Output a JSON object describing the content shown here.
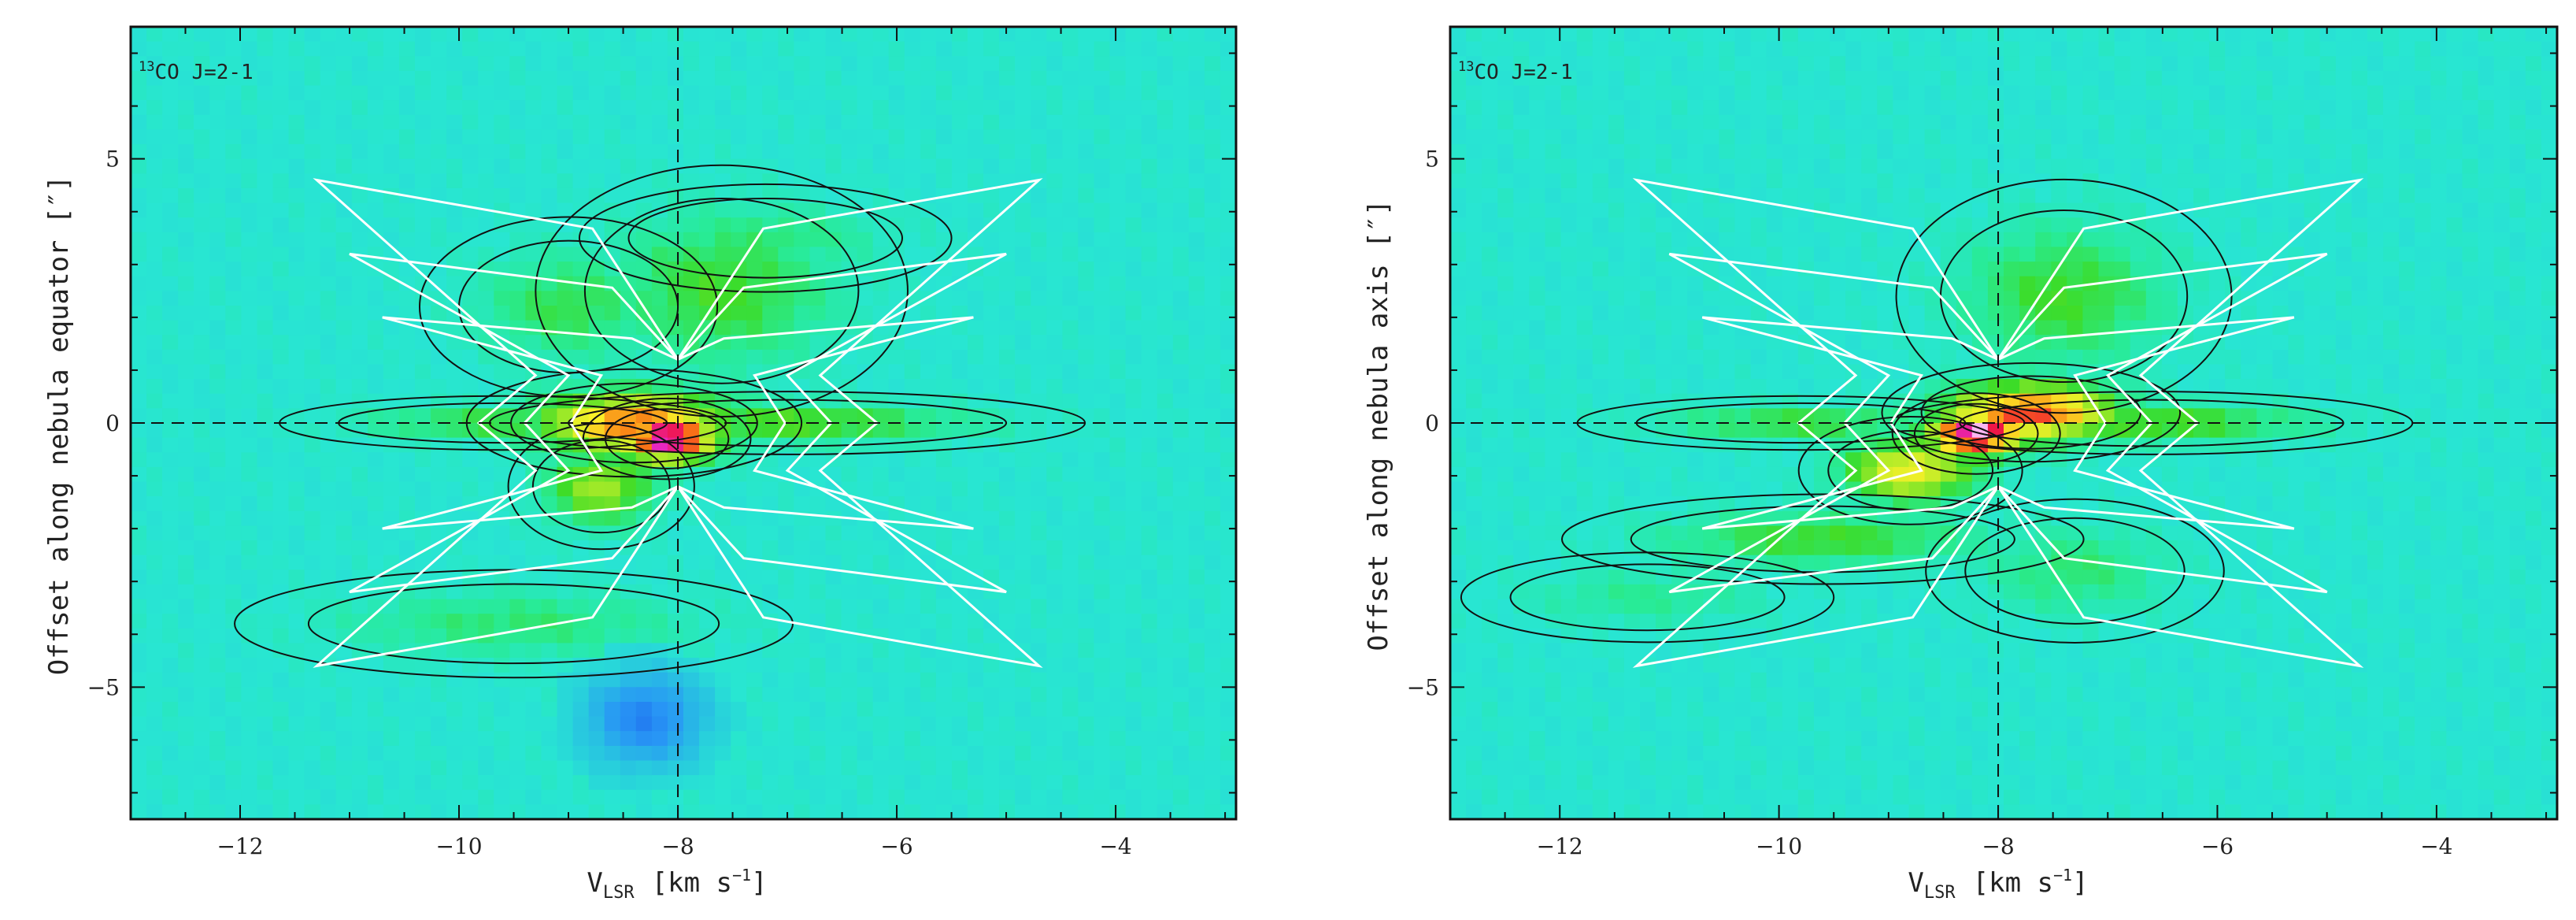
{
  "chart_data": [
    {
      "type": "heatmap",
      "panel_label": {
        "sup": "13",
        "text": "CO J=2-1"
      },
      "xlabel": {
        "main": "V",
        "sub": "LSR",
        "units": "[km s",
        "sup": "−1",
        "close": "]"
      },
      "ylabel": "Offset along nebula equator [″]",
      "xlim": [
        -13.0,
        -2.9
      ],
      "ylim": [
        -7.5,
        7.5
      ],
      "x_ticks": [
        -12,
        -10,
        -8,
        -6,
        -4
      ],
      "x_tick_labels": [
        "−12",
        "−10",
        "−8",
        "−6",
        "−4"
      ],
      "y_ticks": [
        5,
        0,
        -5
      ],
      "y_tick_labels": [
        "5",
        "0",
        "−5"
      ],
      "reference_lines": {
        "x": -8.0,
        "y": 0.0
      },
      "emission": {
        "peak": {
          "x": -8.1,
          "y": -0.3,
          "level": 1.0
        },
        "lobes": [
          {
            "x": -8.4,
            "y": 0.0,
            "wx": 0.9,
            "wy": 0.6,
            "level": 0.75
          },
          {
            "x": -8.7,
            "y": -1.2,
            "wx": 0.5,
            "wy": 0.7,
            "level": 0.45
          },
          {
            "x": -7.6,
            "y": 2.5,
            "wx": 1.0,
            "wy": 1.4,
            "level": 0.3
          },
          {
            "x": -9.0,
            "y": 2.2,
            "wx": 0.8,
            "wy": 1.0,
            "level": 0.25
          },
          {
            "x": -9.5,
            "y": -3.8,
            "wx": 1.5,
            "wy": 0.6,
            "level": 0.2
          },
          {
            "x": -7.2,
            "y": 3.5,
            "wx": 1.0,
            "wy": 0.6,
            "level": 0.2
          },
          {
            "x": -7.0,
            "y": 0.0,
            "wx": 1.6,
            "wy": 0.35,
            "level": 0.35
          },
          {
            "x": -9.6,
            "y": 0.0,
            "wx": 1.2,
            "wy": 0.3,
            "level": 0.3
          }
        ],
        "absorption": {
          "x": -8.3,
          "y": -5.6,
          "wx": 0.55,
          "wy": 0.9,
          "level": -0.6
        }
      }
    },
    {
      "type": "heatmap",
      "panel_label": {
        "sup": "13",
        "text": "CO J=2-1"
      },
      "xlabel": {
        "main": "V",
        "sub": "LSR",
        "units": "[km s",
        "sup": "−1",
        "close": "]"
      },
      "ylabel": "Offset along nebula axis [″]",
      "xlim": [
        -13.0,
        -2.9
      ],
      "ylim": [
        -7.5,
        7.5
      ],
      "x_ticks": [
        -12,
        -10,
        -8,
        -6,
        -4
      ],
      "x_tick_labels": [
        "−12",
        "−10",
        "−8",
        "−6",
        "−4"
      ],
      "y_ticks": [
        5,
        0,
        -5
      ],
      "y_tick_labels": [
        "5",
        "0",
        "−5"
      ],
      "reference_lines": {
        "x": -8.0,
        "y": 0.0
      },
      "emission": {
        "peak": {
          "x": -8.2,
          "y": -0.2,
          "level": 1.0
        },
        "lobes": [
          {
            "x": -7.7,
            "y": 0.2,
            "wx": 0.8,
            "wy": 0.55,
            "level": 0.8
          },
          {
            "x": -8.8,
            "y": -0.9,
            "wx": 0.6,
            "wy": 0.6,
            "level": 0.6
          },
          {
            "x": -7.4,
            "y": 2.4,
            "wx": 0.9,
            "wy": 1.3,
            "level": 0.3
          },
          {
            "x": -9.6,
            "y": -2.2,
            "wx": 1.4,
            "wy": 0.5,
            "level": 0.3
          },
          {
            "x": -7.3,
            "y": -2.8,
            "wx": 0.8,
            "wy": 0.8,
            "level": 0.2
          },
          {
            "x": -6.6,
            "y": 0.0,
            "wx": 1.4,
            "wy": 0.35,
            "level": 0.35
          },
          {
            "x": -9.8,
            "y": 0.0,
            "wx": 1.2,
            "wy": 0.3,
            "level": 0.3
          },
          {
            "x": -11.2,
            "y": -3.3,
            "wx": 1.0,
            "wy": 0.5,
            "level": 0.15
          }
        ],
        "absorption": null
      }
    }
  ]
}
